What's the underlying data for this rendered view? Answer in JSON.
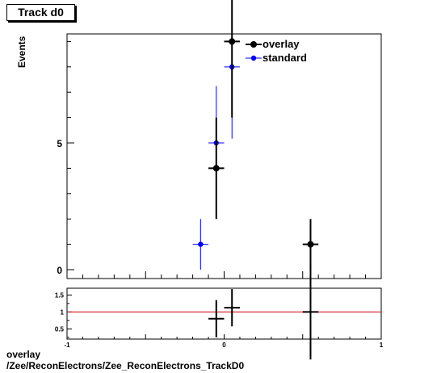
{
  "title": "Track d0",
  "footer": {
    "line1": "overlay",
    "line2": "/Zee/ReconElectrons/Zee_ReconElectrons_TrackD0"
  },
  "colors": {
    "overlay": "#000000",
    "standard": "#0000ff",
    "ratio_line": "#cc0000"
  },
  "chart_data": [
    {
      "type": "scatter",
      "title": "Track d0",
      "ylabel": "Events",
      "xlim": [
        -1,
        1
      ],
      "ylim": [
        -0.35,
        9.3
      ],
      "y_ticks": [
        0,
        5
      ],
      "x_tick_labels_shown": false,
      "legend_placement": "top-right",
      "series": [
        {
          "name": "overlay",
          "points": [
            {
              "x": -0.05,
              "y": 4,
              "xerr": 0.05,
              "yerr": 2
            },
            {
              "x": 0.05,
              "y": 9,
              "xerr": 0.05,
              "yerr": 3
            },
            {
              "x": 0.55,
              "y": 1,
              "xerr": 0.05,
              "yerr": 1
            }
          ]
        },
        {
          "name": "standard",
          "points": [
            {
              "x": -0.15,
              "y": 1,
              "xerr": 0.05,
              "yerr": 1
            },
            {
              "x": -0.05,
              "y": 5,
              "xerr": 0.05,
              "yerr": 2.24
            },
            {
              "x": 0.05,
              "y": 8,
              "xerr": 0.05,
              "yerr": 2.83
            }
          ]
        }
      ]
    },
    {
      "type": "scatter",
      "xlim": [
        -1,
        1
      ],
      "ylim": [
        0.2,
        1.7
      ],
      "x_tick_labels": [
        "-1",
        "0",
        "1"
      ],
      "y_tick_labels": [
        "0.5",
        "1",
        "1.5"
      ],
      "reference_line": 1,
      "points": [
        {
          "x": -0.05,
          "y": 0.8,
          "xerr": 0.05,
          "yerr": 0.55
        },
        {
          "x": 0.05,
          "y": 1.125,
          "xerr": 0.05,
          "yerr": 0.55
        },
        {
          "x": 0.55,
          "y": 1.0,
          "xerr": 0.05,
          "yerr": 1.4
        }
      ]
    }
  ]
}
